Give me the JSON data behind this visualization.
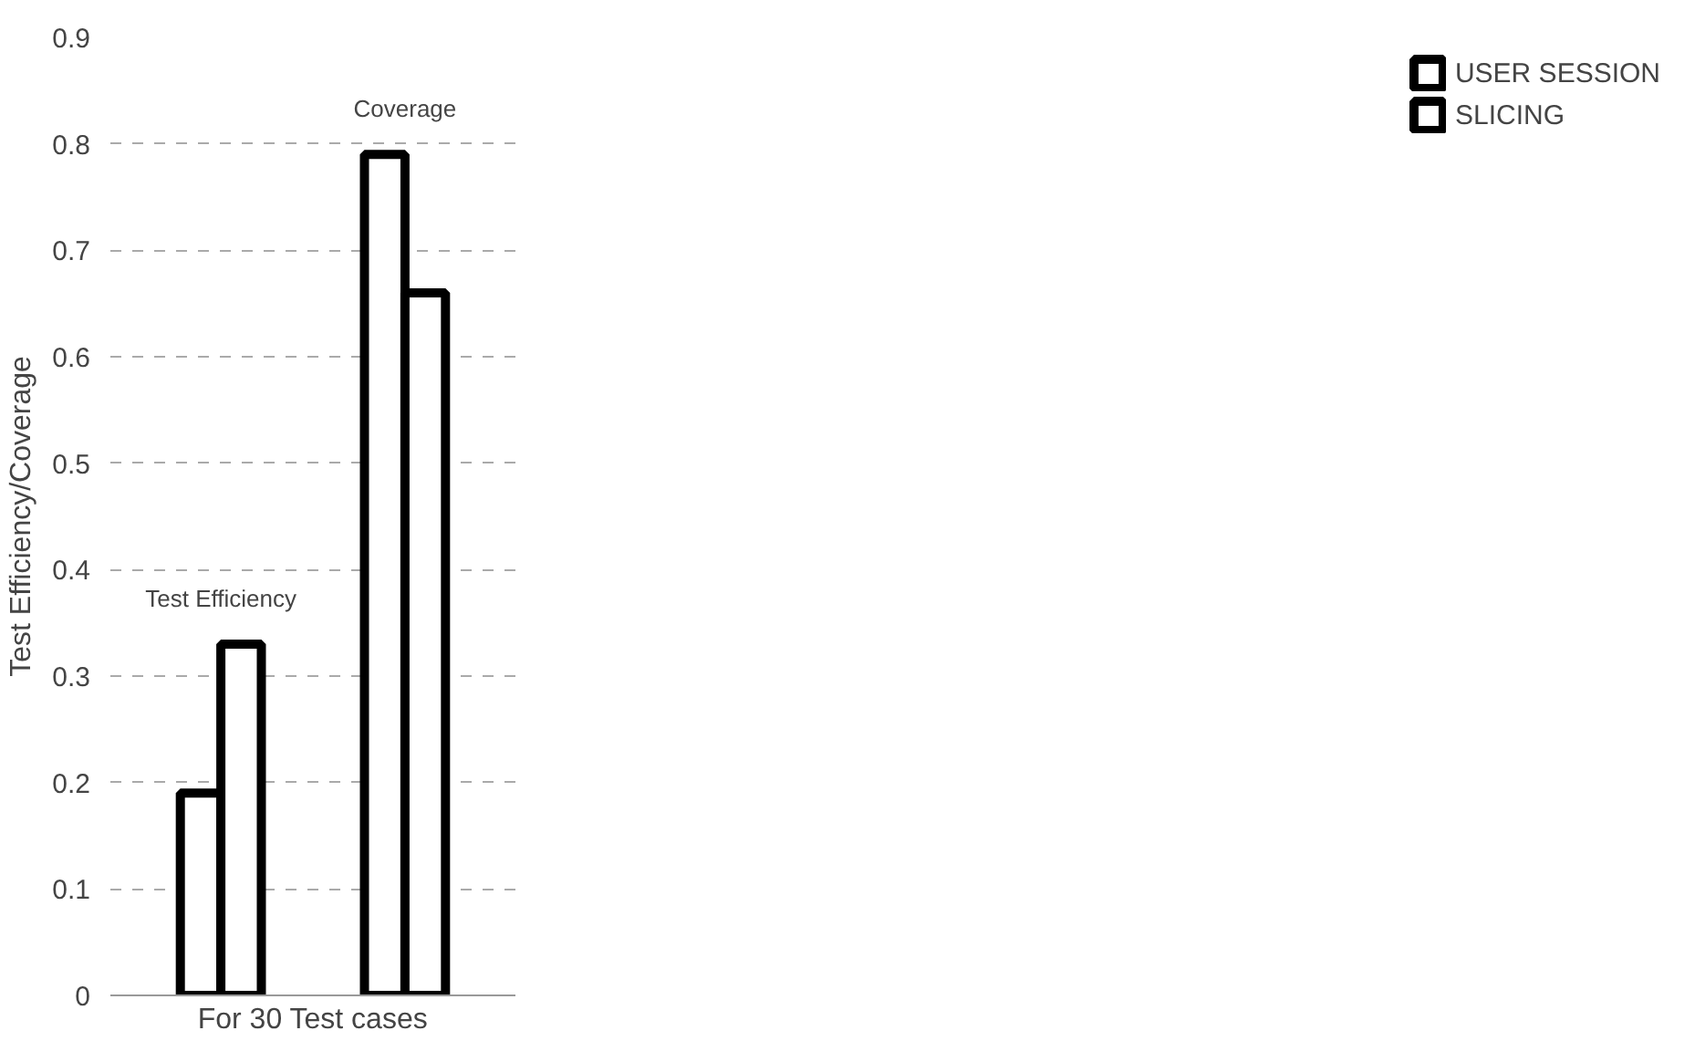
{
  "chart_data": {
    "type": "bar",
    "xlabel": "For 30 Test cases",
    "ylabel": "Test Efficiency/Coverage",
    "categories": [
      "Test Efficiency",
      "Coverage"
    ],
    "series": [
      {
        "name": "USER SESSION",
        "color": "#ffffff",
        "values": [
          0.19,
          0.79
        ]
      },
      {
        "name": "SLICING",
        "color": "#ffffff",
        "values": [
          0.33,
          0.66
        ]
      }
    ],
    "ylim": [
      0,
      0.9
    ],
    "yticks": [
      0,
      0.1,
      0.2,
      0.3,
      0.4,
      0.5,
      0.6,
      0.7,
      0.8,
      0.9
    ],
    "grid": "y",
    "legend": "right"
  }
}
